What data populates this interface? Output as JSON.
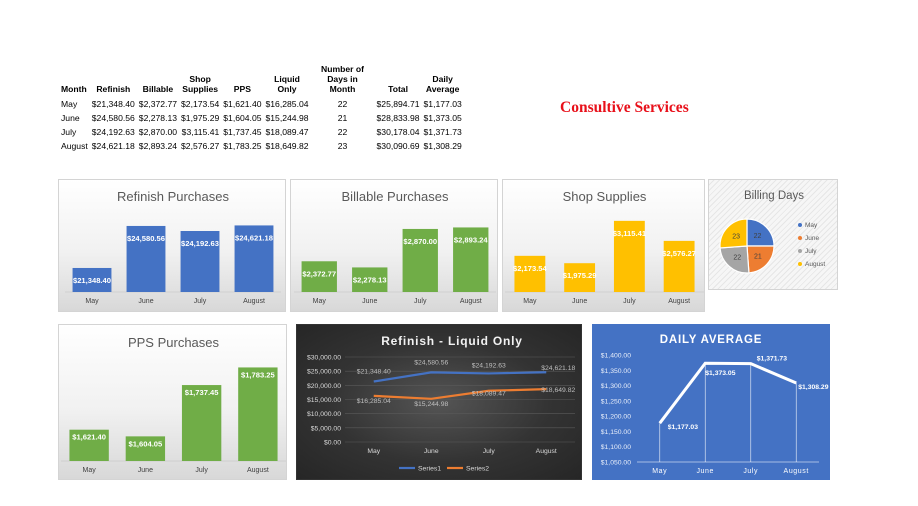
{
  "brand": "Consultive Services",
  "summary": {
    "headers": [
      "Month",
      "Refinish",
      "Billable",
      "Shop Supplies",
      "PPS",
      "Liquid Only",
      "Number of Days in Month",
      "Total",
      "Daily Average"
    ],
    "rows": [
      [
        "May",
        "$21,348.40",
        "$2,372.77",
        "$2,173.54",
        "$1,621.40",
        "$16,285.04",
        "22",
        "$25,894.71",
        "$1,177.03"
      ],
      [
        "June",
        "$24,580.56",
        "$2,278.13",
        "$1,975.29",
        "$1,604.05",
        "$15,244.98",
        "21",
        "$28,833.98",
        "$1,373.05"
      ],
      [
        "July",
        "$24,192.63",
        "$2,870.00",
        "$3,115.41",
        "$1,737.45",
        "$18,089.47",
        "22",
        "$30,178.04",
        "$1,371.73"
      ],
      [
        "August",
        "$24,621.18",
        "$2,893.24",
        "$2,576.27",
        "$1,783.25",
        "$18,649.82",
        "23",
        "$30,090.69",
        "$1,308.29"
      ]
    ]
  },
  "chart_data": [
    {
      "id": "refinish",
      "type": "bar",
      "title": "Refinish Purchases",
      "categories": [
        "May",
        "June",
        "July",
        "August"
      ],
      "values": [
        21348.4,
        24580.56,
        24192.63,
        24621.18
      ],
      "data_labels": [
        "$21,348.40",
        "$24,580.56",
        "$24,192.63",
        "$24,621.18"
      ],
      "ylim": [
        19500,
        25500
      ],
      "color": "#4472c4",
      "grid": false
    },
    {
      "id": "billable",
      "type": "bar",
      "title": "Billable Purchases",
      "categories": [
        "May",
        "June",
        "July",
        "August"
      ],
      "values": [
        2372.77,
        2278.13,
        2870.0,
        2893.24
      ],
      "data_labels": [
        "$2,372.77",
        "$2,278.13",
        "$2,870.00",
        "$2,893.24"
      ],
      "ylim": [
        1900,
        3100
      ],
      "color": "#70ad47",
      "grid": false
    },
    {
      "id": "shop",
      "type": "bar",
      "title": "Shop Supplies",
      "categories": [
        "May",
        "June",
        "July",
        "August"
      ],
      "values": [
        2173.54,
        1975.29,
        3115.41,
        2576.27
      ],
      "data_labels": [
        "$2,173.54",
        "$1,975.29",
        "$3,115.41",
        "$2,576.27"
      ],
      "ylim": [
        1200,
        3300
      ],
      "color": "#ffc000",
      "grid": false
    },
    {
      "id": "days",
      "type": "pie",
      "title": "Billing Days",
      "categories": [
        "May",
        "June",
        "July",
        "August"
      ],
      "values": [
        22,
        21,
        22,
        23
      ],
      "colors": [
        "#4472c4",
        "#ed7d31",
        "#a5a5a5",
        "#ffc000"
      ],
      "legend": "right"
    },
    {
      "id": "pps",
      "type": "bar",
      "title": "PPS Purchases",
      "categories": [
        "May",
        "June",
        "July",
        "August"
      ],
      "values": [
        1621.4,
        1604.05,
        1737.45,
        1783.25
      ],
      "data_labels": [
        "$1,621.40",
        "$1,604.05",
        "$1,737.45",
        "$1,783.25"
      ],
      "ylim": [
        1540,
        1800
      ],
      "color": "#70ad47",
      "grid": false
    },
    {
      "id": "liquid",
      "type": "line",
      "title": "Refinish - Liquid Only",
      "categories": [
        "May",
        "June",
        "July",
        "August"
      ],
      "series": [
        {
          "name": "Series1",
          "values": [
            21348.4,
            24580.56,
            24192.63,
            24621.18
          ],
          "data_labels": [
            "$21,348.40",
            "$24,580.56",
            "$24,192.63",
            "$24,621.18"
          ],
          "color": "#4472c4"
        },
        {
          "name": "Series2",
          "values": [
            16285.04,
            15244.98,
            18089.47,
            18649.82
          ],
          "data_labels": [
            "$16,285.04",
            "$15,244.98",
            "$18,089.47",
            "$18,649.82"
          ],
          "color": "#ed7d31"
        }
      ],
      "ylim": [
        0,
        30000
      ],
      "yticks": [
        "$0.00",
        "$5,000.00",
        "$10,000.00",
        "$15,000.00",
        "$20,000.00",
        "$25,000.00",
        "$30,000.00"
      ],
      "grid": true,
      "legend": "bottom"
    },
    {
      "id": "daily",
      "type": "line",
      "title": "DAILY AVERAGE",
      "categories": [
        "May",
        "June",
        "July",
        "August"
      ],
      "values": [
        1177.03,
        1373.05,
        1371.73,
        1308.29
      ],
      "data_labels": [
        "$1,177.03",
        "$1,373.05",
        "$1,371.73",
        "$1,308.29"
      ],
      "ylim": [
        1050,
        1400
      ],
      "yticks": [
        "$1,050.00",
        "$1,100.00",
        "$1,150.00",
        "$1,200.00",
        "$1,250.00",
        "$1,300.00",
        "$1,350.00",
        "$1,400.00"
      ],
      "grid": false
    }
  ]
}
